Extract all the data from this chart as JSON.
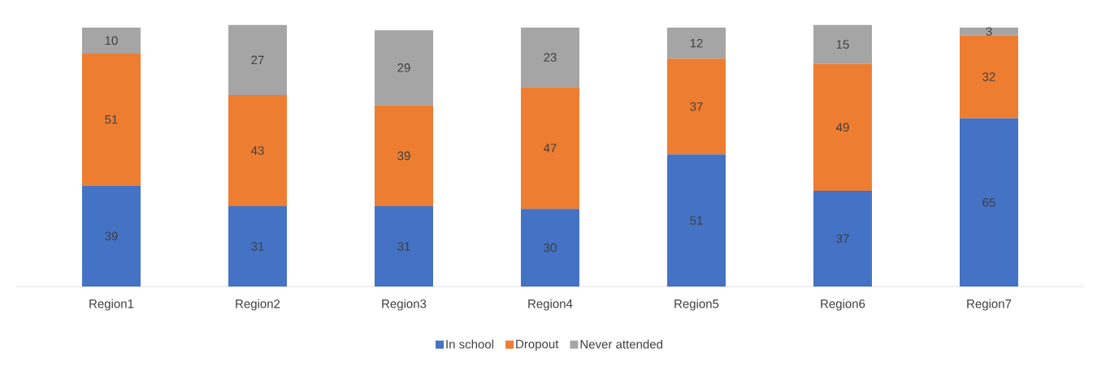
{
  "chart_data": {
    "type": "bar",
    "stacked": true,
    "data_labels": true,
    "legend": "bottom",
    "categories": [
      "Region1",
      "Region2",
      "Region3",
      "Region4",
      "Region5",
      "Region6",
      "Region7"
    ],
    "series": [
      {
        "name": "In school",
        "color": "#4472c4",
        "values": [
          39,
          31,
          31,
          30,
          51,
          37,
          65
        ]
      },
      {
        "name": "Dropout",
        "color": "#ed7d31",
        "values": [
          51,
          43,
          39,
          47,
          37,
          49,
          32
        ]
      },
      {
        "name": "Never attended",
        "color": "#a5a5a5",
        "values": [
          10,
          27,
          29,
          23,
          12,
          15,
          3
        ]
      }
    ]
  }
}
